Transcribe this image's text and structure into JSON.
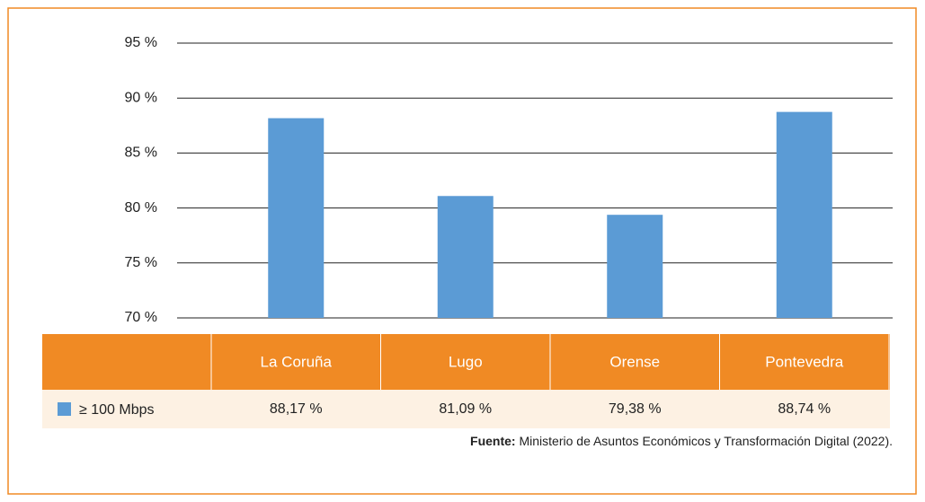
{
  "chart_data": {
    "type": "bar",
    "categories": [
      "La Coruña",
      "Lugo",
      "Orense",
      "Pontevedra"
    ],
    "series": [
      {
        "name": "≥ 100 Mbps",
        "color": "#5b9bd5",
        "values": [
          88.17,
          81.09,
          79.38,
          88.74
        ],
        "value_labels": [
          "88,17 %",
          "81,09 %",
          "79,38 %",
          "88,74 %"
        ]
      }
    ],
    "ylim": [
      70,
      95
    ],
    "yticks": [
      {
        "value": 70,
        "label": "70 %"
      },
      {
        "value": 75,
        "label": "75 %"
      },
      {
        "value": 80,
        "label": "80 %"
      },
      {
        "value": 85,
        "label": "85 %"
      },
      {
        "value": 90,
        "label": "90 %"
      },
      {
        "value": 95,
        "label": "95 %"
      }
    ],
    "grid": true,
    "source_label": "Fuente:",
    "source_text": "Ministerio de Asuntos Económicos y Transformación Digital (2022)."
  }
}
